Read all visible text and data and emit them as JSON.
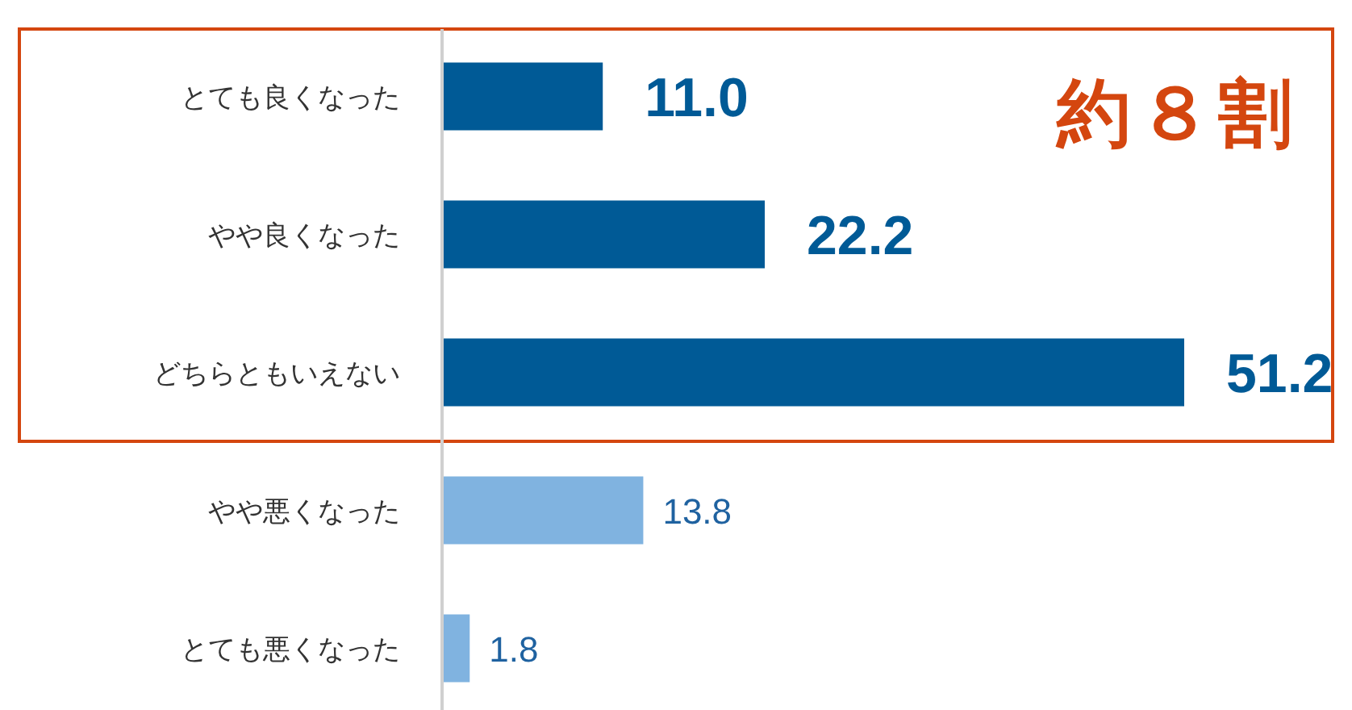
{
  "chart_data": {
    "type": "bar",
    "orientation": "horizontal",
    "categories": [
      "とても良くなった",
      "やや良くなった",
      "どちらともいえない",
      "やや悪くなった",
      "とても悪くなった"
    ],
    "values": [
      11.0,
      22.2,
      51.2,
      13.8,
      1.8
    ],
    "colors": [
      "#005a96",
      "#005a96",
      "#005a96",
      "#80b3e0",
      "#80b3e0"
    ],
    "value_labels": [
      "11.0",
      "22.2",
      "51.2",
      "13.8",
      "1.8"
    ],
    "annotations": [
      "約８割"
    ]
  }
}
